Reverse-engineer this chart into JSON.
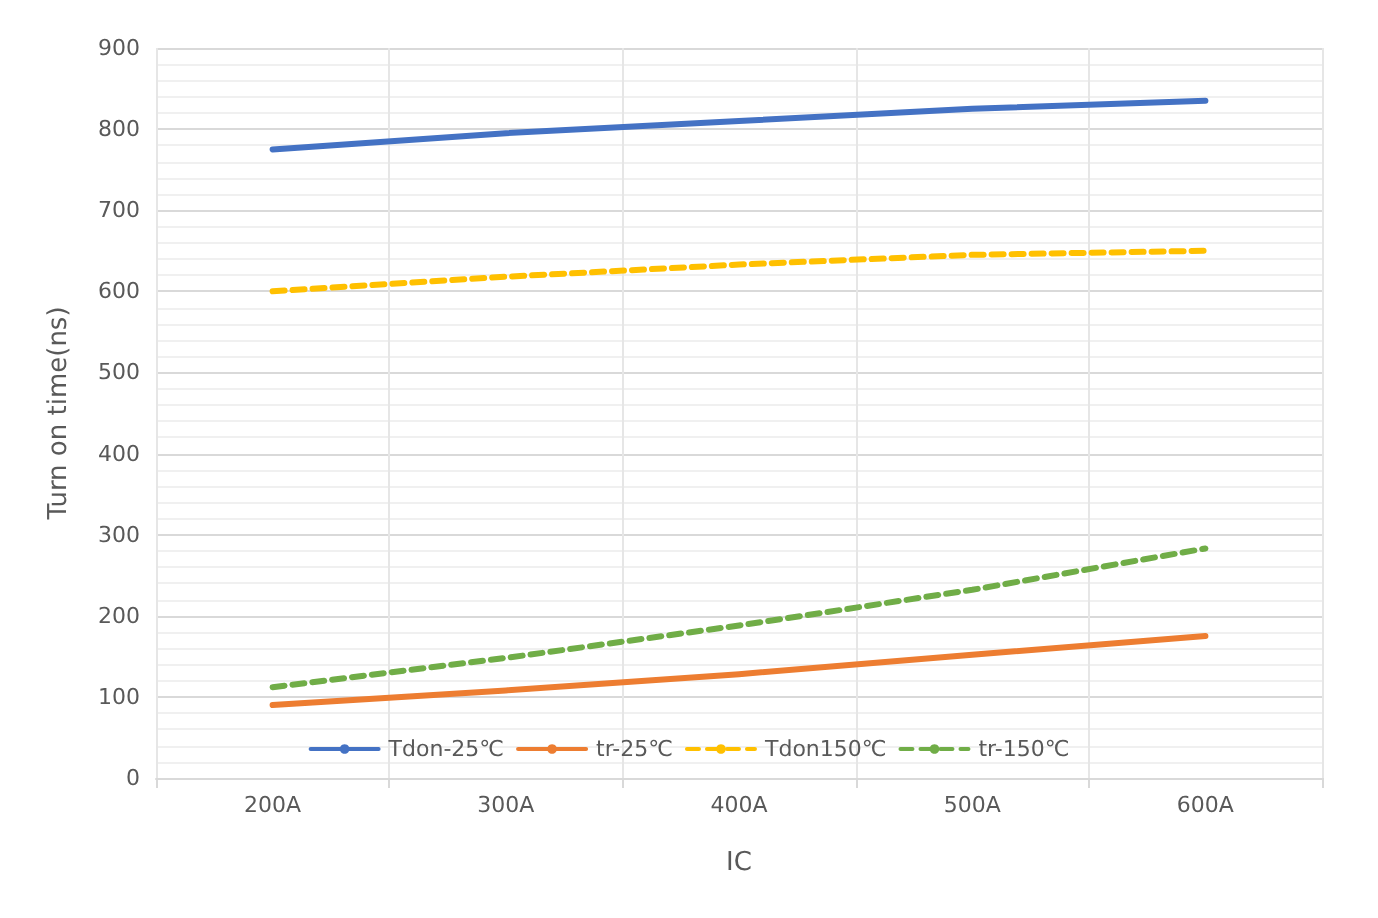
{
  "chart_data": {
    "type": "line",
    "xlabel": "IC",
    "ylabel": "Turn on time(ns)",
    "categories": [
      "200A",
      "300A",
      "400A",
      "500A",
      "600A"
    ],
    "series": [
      {
        "name": "Tdon-25℃",
        "color": "#4472c4",
        "line_style": "solid",
        "values": [
          775,
          795,
          810,
          825,
          835
        ]
      },
      {
        "name": "tr-25℃",
        "color": "#ed7d31",
        "line_style": "solid",
        "values": [
          90,
          108,
          128,
          152,
          175
        ]
      },
      {
        "name": "Tdon150℃",
        "color": "#ffc000",
        "line_style": "dashed",
        "values": [
          600,
          618,
          633,
          645,
          650
        ]
      },
      {
        "name": "tr-150℃",
        "color": "#70ad47",
        "line_style": "dashed",
        "values": [
          112,
          148,
          188,
          232,
          283
        ]
      }
    ],
    "ylim": [
      0,
      900
    ],
    "yticks": [
      0,
      100,
      200,
      300,
      400,
      500,
      600,
      700,
      800,
      900
    ],
    "grid": true,
    "legend": "bottom",
    "marker": "none"
  }
}
